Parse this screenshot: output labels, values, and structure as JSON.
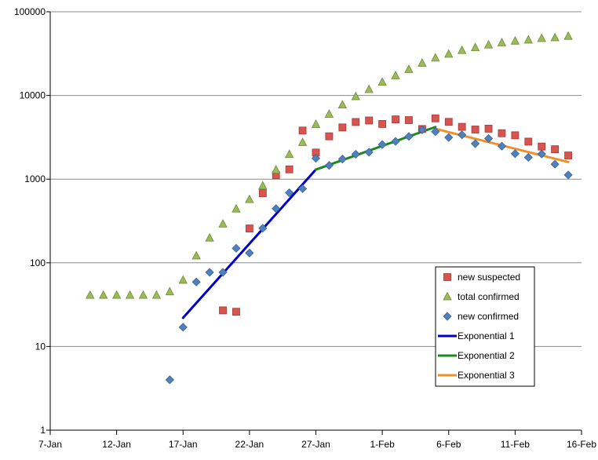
{
  "chart_data": {
    "type": "scatter",
    "y_scale": "log",
    "ylim": [
      1,
      100000
    ],
    "xlim": [
      "2020-01-07",
      "2020-02-16"
    ],
    "grid": "horizontal",
    "legend_position": "right",
    "y_ticks": [
      "1",
      "10",
      "100",
      "1000",
      "10000",
      "100000"
    ],
    "x_ticks": [
      {
        "date": "2020-01-07",
        "label": "7-Jan"
      },
      {
        "date": "2020-01-12",
        "label": "12-Jan"
      },
      {
        "date": "2020-01-17",
        "label": "17-Jan"
      },
      {
        "date": "2020-01-22",
        "label": "22-Jan"
      },
      {
        "date": "2020-01-27",
        "label": "27-Jan"
      },
      {
        "date": "2020-02-01",
        "label": "1-Feb"
      },
      {
        "date": "2020-02-06",
        "label": "6-Feb"
      },
      {
        "date": "2020-02-11",
        "label": "11-Feb"
      },
      {
        "date": "2020-02-16",
        "label": "16-Feb"
      }
    ],
    "series": [
      {
        "name": "new suspected",
        "marker": "square",
        "color": "#d9534f",
        "points": [
          [
            "2020-01-20",
            27
          ],
          [
            "2020-01-21",
            26
          ],
          [
            "2020-01-22",
            257
          ],
          [
            "2020-01-23",
            680
          ],
          [
            "2020-01-24",
            1118
          ],
          [
            "2020-01-25",
            1309
          ],
          [
            "2020-01-26",
            3806
          ],
          [
            "2020-01-27",
            2077
          ],
          [
            "2020-01-28",
            3248
          ],
          [
            "2020-01-29",
            4148
          ],
          [
            "2020-01-30",
            4812
          ],
          [
            "2020-01-31",
            5019
          ],
          [
            "2020-02-01",
            4562
          ],
          [
            "2020-02-02",
            5173
          ],
          [
            "2020-02-03",
            5072
          ],
          [
            "2020-02-04",
            3971
          ],
          [
            "2020-02-05",
            5328
          ],
          [
            "2020-02-06",
            4833
          ],
          [
            "2020-02-07",
            4214
          ],
          [
            "2020-02-08",
            3916
          ],
          [
            "2020-02-09",
            4008
          ],
          [
            "2020-02-10",
            3536
          ],
          [
            "2020-02-11",
            3342
          ],
          [
            "2020-02-12",
            2807
          ],
          [
            "2020-02-13",
            2450
          ],
          [
            "2020-02-14",
            2277
          ],
          [
            "2020-02-15",
            1918
          ]
        ]
      },
      {
        "name": "total confirmed",
        "marker": "triangle",
        "color": "#9bbb59",
        "points": [
          [
            "2020-01-10",
            41
          ],
          [
            "2020-01-11",
            41
          ],
          [
            "2020-01-12",
            41
          ],
          [
            "2020-01-13",
            41
          ],
          [
            "2020-01-14",
            41
          ],
          [
            "2020-01-15",
            41
          ],
          [
            "2020-01-16",
            45
          ],
          [
            "2020-01-17",
            62
          ],
          [
            "2020-01-18",
            121
          ],
          [
            "2020-01-19",
            198
          ],
          [
            "2020-01-20",
            291
          ],
          [
            "2020-01-21",
            440
          ],
          [
            "2020-01-22",
            571
          ],
          [
            "2020-01-23",
            830
          ],
          [
            "2020-01-24",
            1287
          ],
          [
            "2020-01-25",
            1975
          ],
          [
            "2020-01-26",
            2744
          ],
          [
            "2020-01-27",
            4515
          ],
          [
            "2020-01-28",
            5974
          ],
          [
            "2020-01-29",
            7711
          ],
          [
            "2020-01-30",
            9692
          ],
          [
            "2020-01-31",
            11791
          ],
          [
            "2020-02-01",
            14380
          ],
          [
            "2020-02-02",
            17205
          ],
          [
            "2020-02-03",
            20438
          ],
          [
            "2020-02-04",
            24324
          ],
          [
            "2020-02-05",
            28018
          ],
          [
            "2020-02-06",
            31161
          ],
          [
            "2020-02-07",
            34546
          ],
          [
            "2020-02-08",
            37198
          ],
          [
            "2020-02-09",
            40171
          ],
          [
            "2020-02-10",
            42638
          ],
          [
            "2020-02-11",
            44653
          ],
          [
            "2020-02-12",
            46000
          ],
          [
            "2020-02-13",
            48000
          ],
          [
            "2020-02-14",
            49000
          ],
          [
            "2020-02-15",
            51000
          ]
        ]
      },
      {
        "name": "new confirmed",
        "marker": "diamond",
        "color": "#4f81bd",
        "points": [
          [
            "2020-01-16",
            4
          ],
          [
            "2020-01-17",
            17
          ],
          [
            "2020-01-18",
            59
          ],
          [
            "2020-01-19",
            77
          ],
          [
            "2020-01-20",
            77
          ],
          [
            "2020-01-21",
            149
          ],
          [
            "2020-01-22",
            131
          ],
          [
            "2020-01-23",
            259
          ],
          [
            "2020-01-24",
            444
          ],
          [
            "2020-01-25",
            688
          ],
          [
            "2020-01-26",
            769
          ],
          [
            "2020-01-27",
            1771
          ],
          [
            "2020-01-28",
            1459
          ],
          [
            "2020-01-29",
            1737
          ],
          [
            "2020-01-30",
            1981
          ],
          [
            "2020-01-31",
            2099
          ],
          [
            "2020-02-01",
            2589
          ],
          [
            "2020-02-02",
            2825
          ],
          [
            "2020-02-03",
            3235
          ],
          [
            "2020-02-04",
            3887
          ],
          [
            "2020-02-05",
            3694
          ],
          [
            "2020-02-06",
            3143
          ],
          [
            "2020-02-07",
            3385
          ],
          [
            "2020-02-08",
            2652
          ],
          [
            "2020-02-09",
            3062
          ],
          [
            "2020-02-10",
            2478
          ],
          [
            "2020-02-11",
            2015
          ],
          [
            "2020-02-12",
            1820
          ],
          [
            "2020-02-13",
            1998
          ],
          [
            "2020-02-14",
            1506
          ],
          [
            "2020-02-15",
            1121
          ]
        ]
      },
      {
        "name": "Exponential 1",
        "marker": "line",
        "color": "#0000cc",
        "points": [
          [
            "2020-01-17",
            22
          ],
          [
            "2020-01-27",
            1300
          ]
        ]
      },
      {
        "name": "Exponential 2",
        "marker": "line",
        "color": "#1a8a1a",
        "points": [
          [
            "2020-01-27",
            1300
          ],
          [
            "2020-02-05",
            4200
          ]
        ]
      },
      {
        "name": "Exponential 3",
        "marker": "line",
        "color": "#f0902a",
        "points": [
          [
            "2020-02-05",
            4000
          ],
          [
            "2020-02-15",
            1600
          ]
        ]
      }
    ]
  }
}
